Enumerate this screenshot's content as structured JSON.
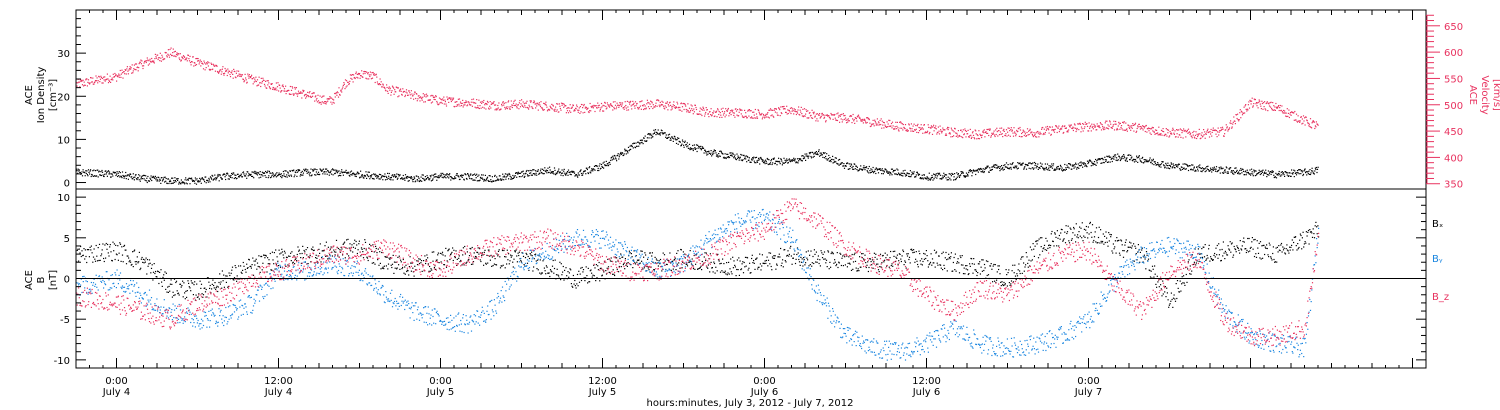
{
  "chart_data": [
    {
      "type": "scatter",
      "panel": "plasma",
      "ylabel_left": [
        "ACE",
        "Ion Density",
        "[cm⁻³]"
      ],
      "ylabel_right": [
        "ACE",
        "Velocity",
        "[km/s]"
      ],
      "xlim": [
        -3,
        97
      ],
      "ylim_left": [
        -1.5,
        40
      ],
      "ylim_right": [
        340,
        680
      ],
      "left_ticks": [
        0,
        10,
        20,
        30
      ],
      "right_ticks": [
        350,
        400,
        450,
        500,
        550,
        600,
        650
      ],
      "colors": {
        "density": "#000000",
        "velocity": "#e8325f"
      },
      "series": [
        {
          "axis": "right",
          "color": "#e8325f",
          "x": [
            -3,
            0,
            2,
            4,
            6,
            8,
            10,
            12,
            14,
            15.5,
            16,
            17,
            18,
            19,
            20,
            22,
            24,
            26,
            28,
            30,
            32,
            34,
            36,
            38,
            40,
            42,
            44,
            46,
            48,
            50,
            52,
            54,
            56,
            58,
            60,
            62,
            64,
            66,
            68,
            70,
            72,
            74,
            76,
            78,
            80,
            82,
            84,
            86,
            88,
            89
          ],
          "y": [
            540,
            555,
            580,
            600,
            580,
            565,
            548,
            535,
            520,
            508,
            510,
            545,
            560,
            555,
            530,
            518,
            508,
            505,
            500,
            502,
            498,
            492,
            498,
            500,
            502,
            496,
            486,
            486,
            483,
            492,
            478,
            476,
            468,
            460,
            455,
            448,
            445,
            450,
            448,
            455,
            460,
            462,
            456,
            448,
            445,
            450,
            505,
            495,
            470,
            460
          ]
        },
        {
          "axis": "left",
          "color": "#000000",
          "x": [
            -3,
            0,
            2,
            4,
            6,
            8,
            10,
            12,
            14,
            16,
            18,
            20,
            22,
            24,
            26,
            28,
            30,
            32,
            34,
            36,
            38,
            40,
            42,
            44,
            46,
            48,
            50,
            52,
            54,
            56,
            58,
            60,
            62,
            64,
            66,
            68,
            70,
            72,
            74,
            76,
            78,
            80,
            82,
            84,
            86,
            88,
            89
          ],
          "y": [
            2.5,
            2,
            1,
            0.5,
            0.5,
            1.5,
            2,
            2,
            2.5,
            2.5,
            2,
            1.5,
            1,
            1.5,
            1.5,
            1,
            2,
            3,
            2,
            4,
            8,
            12,
            9,
            7,
            6,
            5,
            5,
            7,
            4,
            3,
            2.5,
            1.5,
            1.5,
            3,
            4,
            4,
            3.5,
            4.5,
            6,
            5.5,
            4,
            3.5,
            3,
            2.5,
            2,
            2.5,
            3
          ]
        }
      ]
    },
    {
      "type": "scatter",
      "panel": "magnetic",
      "ylabel": [
        "ACE",
        "B",
        "[nT]"
      ],
      "xlim": [
        -3,
        97
      ],
      "ylim": [
        -11,
        11
      ],
      "yticks": [
        -10,
        -5,
        0,
        5,
        10
      ],
      "zero_line": true,
      "legend": [
        "Bₓ",
        "Bᵧ",
        "B_z"
      ],
      "colors": {
        "Bx": "#000000",
        "By": "#1a86e0",
        "Bz": "#e8325f"
      },
      "series": [
        {
          "name": "Bₓ",
          "color": "#000000",
          "x": [
            -3,
            0,
            2,
            4,
            6,
            8,
            10,
            12,
            14,
            16,
            18,
            20,
            22,
            24,
            26,
            28,
            30,
            32,
            34,
            36,
            38,
            40,
            42,
            44,
            46,
            48,
            50,
            52,
            54,
            56,
            58,
            60,
            62,
            64,
            66,
            68,
            70,
            72,
            74,
            76,
            78,
            80,
            82,
            84,
            86,
            88,
            89
          ],
          "y": [
            3,
            3.5,
            2,
            -1,
            -1.5,
            0,
            1.5,
            2.5,
            3,
            3.5,
            4,
            2,
            1.5,
            2.5,
            3,
            2.5,
            2.5,
            1.5,
            0,
            1,
            2.5,
            2,
            2.5,
            2,
            1.5,
            2,
            3,
            2.5,
            2,
            2,
            2.5,
            2.5,
            2,
            1.5,
            0,
            3.5,
            5.5,
            6,
            4,
            3,
            -3,
            3,
            3.5,
            4,
            3,
            5,
            6
          ]
        },
        {
          "name": "Bᵧ",
          "color": "#1a86e0",
          "x": [
            -3,
            0,
            2,
            4,
            6,
            8,
            10,
            12,
            14,
            16,
            18,
            20,
            22,
            24,
            26,
            28,
            30,
            32,
            34,
            36,
            38,
            40,
            42,
            44,
            46,
            48,
            50,
            52,
            54,
            56,
            58,
            60,
            62,
            64,
            66,
            68,
            70,
            72,
            74,
            76,
            78,
            80,
            82,
            84,
            86,
            88,
            89
          ],
          "y": [
            -1,
            0,
            -2,
            -4,
            -5,
            -4.5,
            -3,
            1,
            1,
            2,
            1,
            -2,
            -4,
            -5,
            -5.5,
            -3.5,
            2,
            3.5,
            5,
            5,
            3,
            1,
            2,
            5,
            7,
            7.5,
            5,
            -2,
            -7,
            -8.5,
            -9,
            -8,
            -6,
            -8,
            -8.5,
            -8,
            -7,
            -5,
            0,
            3,
            4,
            3.5,
            -4,
            -7,
            -8,
            -8.5,
            6
          ]
        },
        {
          "name": "B_z",
          "color": "#e8325f",
          "x": [
            -3,
            0,
            2,
            4,
            6,
            8,
            10,
            12,
            14,
            16,
            18,
            20,
            22,
            24,
            26,
            28,
            30,
            32,
            34,
            36,
            38,
            40,
            42,
            44,
            46,
            48,
            50,
            52,
            54,
            56,
            58,
            60,
            62,
            64,
            66,
            68,
            70,
            72,
            74,
            76,
            78,
            80,
            82,
            84,
            86,
            88,
            89
          ],
          "y": [
            -2,
            -3,
            -4,
            -5,
            -3,
            -2,
            0,
            1,
            2,
            3,
            3,
            4,
            2,
            1,
            3,
            4,
            4.5,
            5,
            4,
            2,
            1,
            1,
            2,
            3,
            5,
            6,
            9,
            7,
            4,
            2,
            1,
            -2,
            -4,
            -1,
            -2,
            1,
            3,
            3.5,
            -1,
            -4,
            1,
            2.5,
            -5,
            -7,
            -7,
            -6,
            5
          ]
        }
      ]
    }
  ],
  "x_axis": {
    "ticks": [
      {
        "value": 0,
        "time": "0:00",
        "date": "July 4"
      },
      {
        "value": 12,
        "time": "12:00",
        "date": "July 4"
      },
      {
        "value": 24,
        "time": "0:00",
        "date": "July 5"
      },
      {
        "value": 36,
        "time": "12:00",
        "date": "July 5"
      },
      {
        "value": 48,
        "time": "0:00",
        "date": "July 6"
      },
      {
        "value": 60,
        "time": "12:00",
        "date": "July 6"
      },
      {
        "value": 72,
        "time": "0:00",
        "date": "July 7"
      }
    ],
    "label": "hours:minutes, July  3, 2012 - July  7, 2012"
  }
}
